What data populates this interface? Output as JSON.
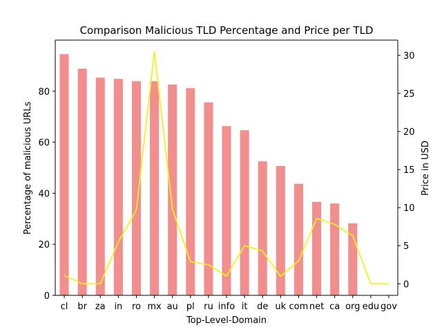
{
  "chart_data": {
    "type": "bar",
    "title": "Comparison Malicious TLD Percentage and Price per TLD",
    "xlabel": "Top-Level-Domain",
    "ylabel": "Percentage of malicious URLs",
    "ylabel_right": "Price in USD",
    "categories": [
      "cl",
      "br",
      "za",
      "in",
      "ro",
      "mx",
      "au",
      "pl",
      "ru",
      "info",
      "it",
      "de",
      "uk",
      "com",
      "net",
      "ca",
      "org",
      "edu",
      "gov"
    ],
    "series": [
      {
        "axis": "left",
        "kind": "bar",
        "color": "#f28e8e",
        "values": [
          94.5,
          88.8,
          85.3,
          84.8,
          83.9,
          83.9,
          82.6,
          81.2,
          75.6,
          66.3,
          64.7,
          52.5,
          50.7,
          43.7,
          36.6,
          36.0,
          28.2,
          0,
          0
        ]
      },
      {
        "axis": "right",
        "kind": "line",
        "color": "#f2f21a",
        "values": [
          1.1,
          0.0,
          0.0,
          5.5,
          9.7,
          30.5,
          9.8,
          2.9,
          2.5,
          1.0,
          5.0,
          4.3,
          1.0,
          3.0,
          8.6,
          7.8,
          6.3,
          0.0,
          0.0
        ]
      }
    ],
    "ylim": [
      0,
      100
    ],
    "yticks": [
      0,
      20,
      40,
      60,
      80
    ],
    "ylim_right": [
      -1.52,
      32.0
    ],
    "yticks_right": [
      0,
      5,
      10,
      15,
      20,
      25,
      30
    ],
    "grid": false
  }
}
